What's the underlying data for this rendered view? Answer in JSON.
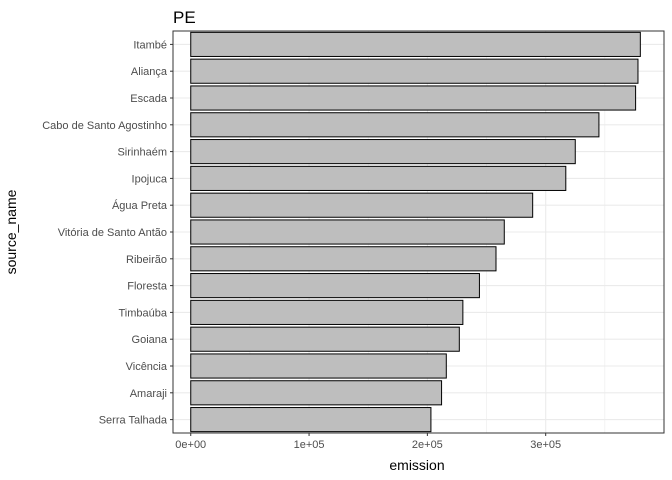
{
  "chart_data": {
    "type": "bar",
    "orientation": "horizontal",
    "title": "PE",
    "xlabel": "emission",
    "ylabel": "source_name",
    "categories": [
      "Itambé",
      "Aliança",
      "Escada",
      "Cabo de Santo Agostinho",
      "Sirinhaém",
      "Ipojuca",
      "Água Preta",
      "Vitória de Santo Antão",
      "Ribeirão",
      "Floresta",
      "Timbaúba",
      "Goiana",
      "Vicência",
      "Amaraji",
      "Serra Talhada"
    ],
    "values": [
      380000,
      378000,
      376000,
      345000,
      325000,
      317000,
      289000,
      265000,
      258000,
      244000,
      230000,
      227000,
      216000,
      212000,
      203000
    ],
    "xlim": [
      -15000,
      400000
    ],
    "x_ticks": [
      0,
      100000,
      200000,
      300000
    ],
    "x_tick_labels": [
      "0e+00",
      "1e+05",
      "2e+05",
      "3e+05"
    ],
    "grid": true,
    "bar_fill": "#bebebe",
    "bar_stroke": "#000000",
    "grid_color": "#ebebeb",
    "panel_border_color": "#333333"
  }
}
